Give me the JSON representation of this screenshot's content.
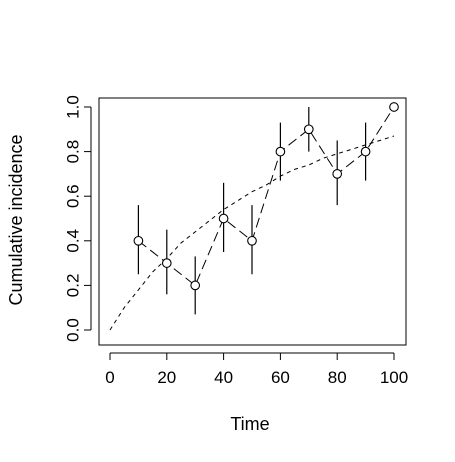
{
  "chart_data": {
    "type": "scatter",
    "title": "",
    "xlabel": "Time",
    "ylabel": "Cumulative incidence",
    "xlim": [
      0,
      100
    ],
    "ylim": [
      0,
      1
    ],
    "x_ticks": [
      0,
      20,
      40,
      60,
      80,
      100
    ],
    "y_ticks": [
      0.0,
      0.2,
      0.4,
      0.6,
      0.8,
      1.0
    ],
    "x_tick_labels": [
      "0",
      "20",
      "40",
      "60",
      "80",
      "100"
    ],
    "y_tick_labels": [
      "0.0",
      "0.2",
      "0.4",
      "0.6",
      "0.8",
      "1.0"
    ],
    "grid": false,
    "legend": "none",
    "observed": {
      "x": [
        10,
        20,
        30,
        40,
        50,
        60,
        70,
        80,
        90,
        100
      ],
      "y": [
        0.4,
        0.3,
        0.2,
        0.5,
        0.4,
        0.8,
        0.9,
        0.7,
        0.8,
        1.0
      ],
      "lower": [
        0.25,
        0.16,
        0.07,
        0.35,
        0.25,
        0.67,
        0.8,
        0.56,
        0.67,
        1.0
      ],
      "upper": [
        0.56,
        0.45,
        0.33,
        0.66,
        0.56,
        0.93,
        1.0,
        0.85,
        0.93,
        1.0
      ],
      "line_style": "longdash",
      "marker": "open-circle"
    },
    "fitted": {
      "x": [
        0,
        5,
        10,
        15,
        20,
        25,
        30,
        35,
        40,
        45,
        50,
        55,
        60,
        65,
        70,
        75,
        80,
        85,
        90,
        95,
        100
      ],
      "y": [
        0.0,
        0.1,
        0.18,
        0.26,
        0.32,
        0.39,
        0.44,
        0.49,
        0.54,
        0.58,
        0.62,
        0.65,
        0.69,
        0.72,
        0.74,
        0.77,
        0.79,
        0.81,
        0.83,
        0.85,
        0.87
      ],
      "line_style": "dashed"
    }
  }
}
